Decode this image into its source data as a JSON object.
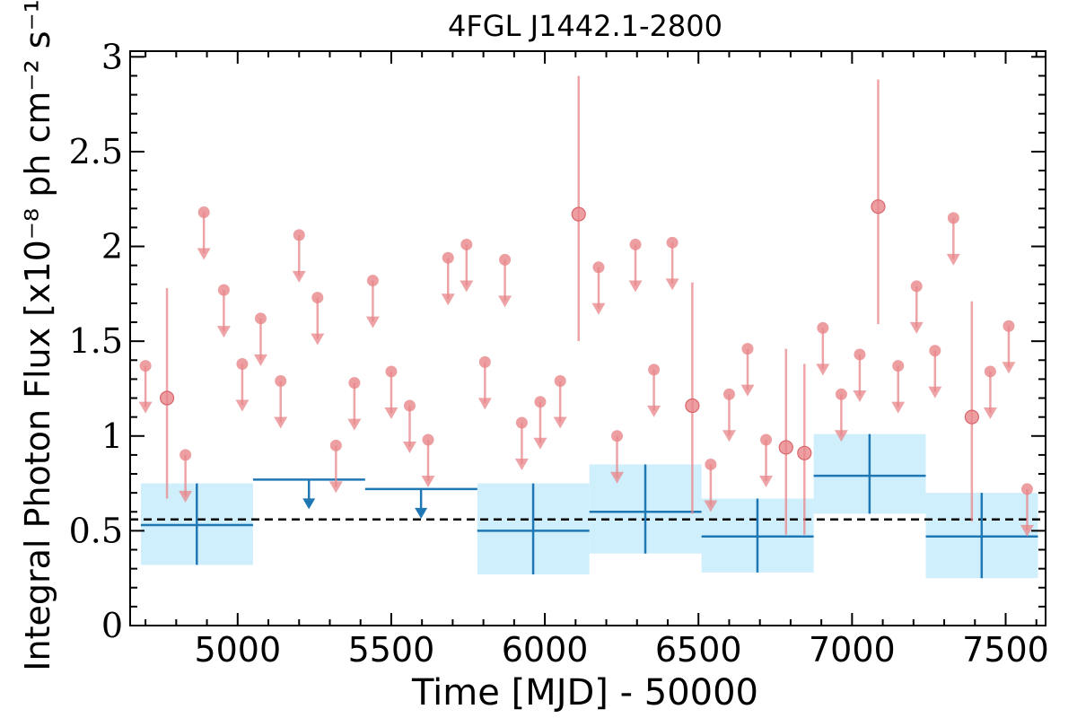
{
  "chart_data": {
    "type": "scatter",
    "title": "4FGL J1442.1-2800",
    "xlabel": "Time [MJD] - 50000",
    "ylabel": "Integral Photon Flux [x10⁻⁸ ph cm⁻² s⁻¹]",
    "xlim": [
      4650,
      7630
    ],
    "ylim": [
      0,
      3.03
    ],
    "x_ticks": [
      5000,
      5500,
      6000,
      6500,
      7000,
      7500
    ],
    "y_ticks": [
      0,
      0.5,
      1,
      1.5,
      2,
      2.5,
      3
    ],
    "y_tick_labels": [
      "0",
      "0.5",
      "1",
      "1.5",
      "2",
      "2.5",
      "3"
    ],
    "average_flux": 0.56,
    "colors": {
      "short_bins": "#e8868a",
      "long_bins": "#1f77b4",
      "long_bins_band": "#cdeefd",
      "average_line": "#000000"
    },
    "series": [
      {
        "bin": "short",
        "upper_limits": [
          {
            "x": 4700,
            "y": 1.37
          },
          {
            "x": 4830,
            "y": 0.9
          },
          {
            "x": 4890,
            "y": 2.18
          },
          {
            "x": 4955,
            "y": 1.77
          },
          {
            "x": 5015,
            "y": 1.38
          },
          {
            "x": 5075,
            "y": 1.62
          },
          {
            "x": 5140,
            "y": 1.29
          },
          {
            "x": 5200,
            "y": 2.06
          },
          {
            "x": 5260,
            "y": 1.73
          },
          {
            "x": 5320,
            "y": 0.95
          },
          {
            "x": 5380,
            "y": 1.28
          },
          {
            "x": 5440,
            "y": 1.82
          },
          {
            "x": 5500,
            "y": 1.34
          },
          {
            "x": 5560,
            "y": 1.16
          },
          {
            "x": 5620,
            "y": 0.98
          },
          {
            "x": 5685,
            "y": 1.94
          },
          {
            "x": 5745,
            "y": 2.01
          },
          {
            "x": 5805,
            "y": 1.39
          },
          {
            "x": 5870,
            "y": 1.93
          },
          {
            "x": 5925,
            "y": 1.07
          },
          {
            "x": 5985,
            "y": 1.18
          },
          {
            "x": 6050,
            "y": 1.29
          },
          {
            "x": 6175,
            "y": 1.89
          },
          {
            "x": 6235,
            "y": 1.0
          },
          {
            "x": 6295,
            "y": 2.01
          },
          {
            "x": 6355,
            "y": 1.35
          },
          {
            "x": 6415,
            "y": 2.02
          },
          {
            "x": 6540,
            "y": 0.85
          },
          {
            "x": 6600,
            "y": 1.22
          },
          {
            "x": 6660,
            "y": 1.46
          },
          {
            "x": 6720,
            "y": 0.98
          },
          {
            "x": 6905,
            "y": 1.57
          },
          {
            "x": 6965,
            "y": 1.22
          },
          {
            "x": 7025,
            "y": 1.43
          },
          {
            "x": 7150,
            "y": 1.37
          },
          {
            "x": 7210,
            "y": 1.79
          },
          {
            "x": 7270,
            "y": 1.45
          },
          {
            "x": 7330,
            "y": 2.15
          },
          {
            "x": 7450,
            "y": 1.34
          },
          {
            "x": 7510,
            "y": 1.58
          },
          {
            "x": 7570,
            "y": 0.72
          }
        ],
        "detections": [
          {
            "x": 4770,
            "y": 1.2,
            "y_low": 0.67,
            "y_high": 1.78
          },
          {
            "x": 6110,
            "y": 2.17,
            "y_low": 1.5,
            "y_high": 2.9
          },
          {
            "x": 6480,
            "y": 1.16,
            "y_low": 0.59,
            "y_high": 1.81
          },
          {
            "x": 6785,
            "y": 0.94,
            "y_low": 0.48,
            "y_high": 1.46
          },
          {
            "x": 6845,
            "y": 0.91,
            "y_low": 0.48,
            "y_high": 1.38
          },
          {
            "x": 7085,
            "y": 2.21,
            "y_low": 1.59,
            "y_high": 2.88
          },
          {
            "x": 7390,
            "y": 1.1,
            "y_low": 0.55,
            "y_high": 1.71
          }
        ]
      },
      {
        "bin": "long",
        "upper_limits": [
          {
            "x_start": 5050,
            "x_end": 5415,
            "x": 5232,
            "y": 0.77
          },
          {
            "x_start": 5415,
            "x_end": 5780,
            "x": 5597,
            "y": 0.72
          }
        ],
        "detections": [
          {
            "x_start": 4685,
            "x_end": 5050,
            "x": 4867,
            "y": 0.53,
            "y_low": 0.32,
            "y_high": 0.75
          },
          {
            "x_start": 5780,
            "x_end": 6145,
            "x": 5962,
            "y": 0.5,
            "y_low": 0.27,
            "y_high": 0.75
          },
          {
            "x_start": 6145,
            "x_end": 6510,
            "x": 6327,
            "y": 0.6,
            "y_low": 0.38,
            "y_high": 0.85
          },
          {
            "x_start": 6510,
            "x_end": 6875,
            "x": 6692,
            "y": 0.47,
            "y_low": 0.28,
            "y_high": 0.67
          },
          {
            "x_start": 6875,
            "x_end": 7240,
            "x": 7057,
            "y": 0.79,
            "y_low": 0.59,
            "y_high": 1.01
          },
          {
            "x_start": 7240,
            "x_end": 7605,
            "x": 7422,
            "y": 0.47,
            "y_low": 0.25,
            "y_high": 0.7
          }
        ]
      }
    ]
  }
}
